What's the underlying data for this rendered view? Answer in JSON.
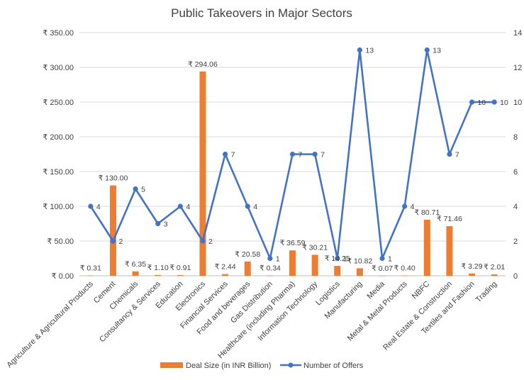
{
  "chart_data": {
    "type": "bar",
    "title": "Public Takeovers in Major Sectors",
    "categories": [
      "Agriculture & Agricultural Products",
      "Cement",
      "Chemicals",
      "Consultancy & Services",
      "Education",
      "Electronics",
      "Financial Services",
      "Food and beverages",
      "Gas Distribution",
      "Healthcare (including Pharma)",
      "Information Technology",
      "Logistics",
      "Manufacturing",
      "Media",
      "Metal & Metal Products",
      "NBFC",
      "Real Estate & Construction",
      "Textiles and Fashion",
      "Trading"
    ],
    "series": [
      {
        "name": "Deal Size (in INR Billion)",
        "type": "bar",
        "axis": "left",
        "color": "#ED7D31",
        "values": [
          0.31,
          130.0,
          6.35,
          1.1,
          0.91,
          294.06,
          2.44,
          20.58,
          0.34,
          36.59,
          30.21,
          14.25,
          10.82,
          0.07,
          0.4,
          80.71,
          71.46,
          3.29,
          2.01
        ],
        "labels": [
          "₹ 0.31",
          "₹ 130.00",
          "₹ 6.35",
          "₹ 1.10",
          "₹ 0.91",
          "₹ 294.06",
          "₹ 2.44",
          "₹ 20.58",
          "₹ 0.34",
          "₹ 36.59",
          "₹ 30.21",
          "₹ 14.25",
          "₹ 10.82",
          "₹ 0.07",
          "₹ 0.40",
          "₹ 80.71",
          "₹ 71.46",
          "₹ 3.29",
          "₹ 2.01"
        ]
      },
      {
        "name": "Number of Offers",
        "type": "line",
        "axis": "right",
        "color": "#4472C4",
        "values": [
          4,
          2,
          5,
          3,
          4,
          2,
          7,
          4,
          1,
          7,
          7,
          1,
          13,
          1,
          4,
          13,
          7,
          10,
          10
        ],
        "labels": [
          "4",
          "2",
          "5",
          "3",
          "4",
          "2",
          "7",
          "4",
          "1",
          "7",
          "7",
          "1",
          "13",
          "1",
          "4",
          "13",
          "7",
          "10",
          "10"
        ]
      }
    ],
    "y_left": {
      "min": 0,
      "max": 350,
      "ticks": [
        "₹ 0.00",
        "₹ 50.00",
        "₹ 100.00",
        "₹ 150.00",
        "₹ 200.00",
        "₹ 250.00",
        "₹ 300.00",
        "₹ 350.00"
      ]
    },
    "y_right": {
      "min": 0,
      "max": 14,
      "ticks": [
        "0",
        "2",
        "4",
        "6",
        "8",
        "10",
        "12",
        "14"
      ]
    },
    "grid": true,
    "legend": "bottom"
  }
}
